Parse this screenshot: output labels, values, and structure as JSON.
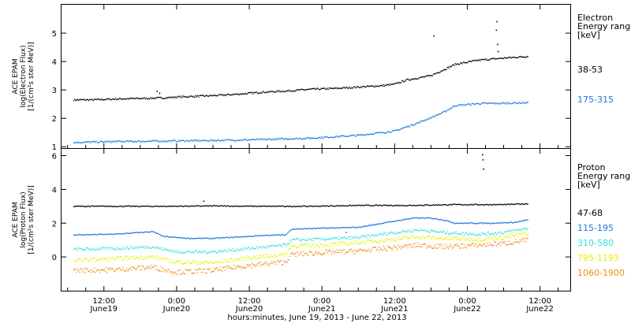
{
  "chart_data": [
    {
      "type": "scatter",
      "ylabel": [
        "ACE EPAM",
        "log(Electron Flux)",
        "[1/(cm²s ster MeV)]"
      ],
      "ylim": [
        0.95,
        6.0
      ],
      "yticks": [
        1,
        2,
        3,
        4,
        5
      ],
      "legend_title": [
        "Electron",
        "Energy range",
        "[keV]"
      ],
      "legend_placement": "right",
      "x_unit": "hours since June 19, 2013 00:00",
      "series": [
        {
          "name": "38-53",
          "color": "#000000",
          "points": [
            [
              7,
              2.65
            ],
            [
              10,
              2.65
            ],
            [
              14,
              2.68
            ],
            [
              18,
              2.7
            ],
            [
              22,
              2.72
            ],
            [
              24,
              2.75
            ],
            [
              28,
              2.78
            ],
            [
              32,
              2.82
            ],
            [
              36,
              2.88
            ],
            [
              38,
              2.92
            ],
            [
              42,
              2.96
            ],
            [
              46,
              3.02
            ],
            [
              50,
              3.05
            ],
            [
              54,
              3.1
            ],
            [
              58,
              3.15
            ],
            [
              60,
              3.2
            ],
            [
              62,
              3.35
            ],
            [
              66,
              3.5
            ],
            [
              68,
              3.7
            ],
            [
              70,
              3.9
            ],
            [
              74,
              4.05
            ],
            [
              78,
              4.12
            ],
            [
              80,
              4.15
            ],
            [
              82,
              4.18
            ]
          ],
          "outliers": [
            [
              20.8,
              2.95
            ],
            [
              21.2,
              2.88
            ],
            [
              66.5,
              4.9
            ],
            [
              76.8,
              5.1
            ],
            [
              76.9,
              5.4
            ],
            [
              77.0,
              4.6
            ],
            [
              77.1,
              4.35
            ]
          ]
        },
        {
          "name": "175-315",
          "color": "#1e78dc",
          "points": [
            [
              7,
              1.15
            ],
            [
              14,
              1.18
            ],
            [
              22,
              1.2
            ],
            [
              30,
              1.22
            ],
            [
              38,
              1.25
            ],
            [
              46,
              1.3
            ],
            [
              54,
              1.4
            ],
            [
              60,
              1.55
            ],
            [
              64,
              1.85
            ],
            [
              68,
              2.2
            ],
            [
              70,
              2.45
            ],
            [
              74,
              2.52
            ],
            [
              78,
              2.53
            ],
            [
              82,
              2.55
            ]
          ],
          "outliers": []
        }
      ]
    },
    {
      "type": "scatter",
      "ylabel": [
        "ACE EPAM",
        "log(Proton Flux)",
        "[1/(cm²s ster MeV)]"
      ],
      "ylim": [
        -2.0,
        6.4
      ],
      "yticks": [
        0,
        2,
        4,
        6
      ],
      "legend_title": [
        "Proton",
        "Energy range",
        "[keV]"
      ],
      "legend_placement": "right",
      "x_unit": "hours since June 19, 2013 00:00",
      "series": [
        {
          "name": "47-68",
          "color": "#000000",
          "points": [
            [
              7,
              3.0
            ],
            [
              14,
              3.0
            ],
            [
              22,
              3.0
            ],
            [
              30,
              3.02
            ],
            [
              38,
              3.0
            ],
            [
              46,
              3.0
            ],
            [
              54,
              3.05
            ],
            [
              62,
              3.05
            ],
            [
              70,
              3.1
            ],
            [
              78,
              3.1
            ],
            [
              82,
              3.15
            ]
          ],
          "outliers": [
            [
              74.5,
              6.05
            ],
            [
              74.6,
              5.75
            ],
            [
              74.7,
              5.2
            ],
            [
              28.5,
              3.3
            ]
          ]
        },
        {
          "name": "115-195",
          "color": "#1e78dc",
          "points": [
            [
              7,
              1.3
            ],
            [
              14,
              1.35
            ],
            [
              20,
              1.5
            ],
            [
              22,
              1.2
            ],
            [
              26,
              1.1
            ],
            [
              30,
              1.1
            ],
            [
              35,
              1.2
            ],
            [
              40,
              1.3
            ],
            [
              42,
              1.3
            ],
            [
              43,
              1.65
            ],
            [
              48,
              1.7
            ],
            [
              54,
              1.75
            ],
            [
              58,
              2.0
            ],
            [
              63,
              2.3
            ],
            [
              66,
              2.3
            ],
            [
              68,
              2.2
            ],
            [
              70,
              2.0
            ],
            [
              76,
              2.0
            ],
            [
              80,
              2.05
            ],
            [
              82,
              2.2
            ]
          ],
          "outliers": [
            [
              52,
              1.45
            ]
          ]
        },
        {
          "name": "310-580",
          "color": "#32e1dc",
          "points": [
            [
              7,
              0.45
            ],
            [
              14,
              0.5
            ],
            [
              20,
              0.6
            ],
            [
              24,
              0.3
            ],
            [
              30,
              0.3
            ],
            [
              36,
              0.5
            ],
            [
              42,
              0.7
            ],
            [
              43,
              1.0
            ],
            [
              48,
              1.05
            ],
            [
              54,
              1.15
            ],
            [
              60,
              1.45
            ],
            [
              64,
              1.6
            ],
            [
              68,
              1.45
            ],
            [
              74,
              1.35
            ],
            [
              78,
              1.45
            ],
            [
              82,
              1.7
            ]
          ],
          "outliers": []
        },
        {
          "name": "795-1193",
          "color": "#e6f000",
          "points": [
            [
              7,
              -0.2
            ],
            [
              14,
              -0.1
            ],
            [
              20,
              0.0
            ],
            [
              24,
              -0.3
            ],
            [
              30,
              -0.35
            ],
            [
              36,
              -0.05
            ],
            [
              42,
              0.15
            ],
            [
              43,
              0.65
            ],
            [
              48,
              0.7
            ],
            [
              54,
              0.85
            ],
            [
              60,
              1.05
            ],
            [
              64,
              1.2
            ],
            [
              68,
              1.1
            ],
            [
              74,
              1.05
            ],
            [
              78,
              1.15
            ],
            [
              82,
              1.4
            ]
          ],
          "outliers": []
        },
        {
          "name": "1060-1900",
          "color": "#f08c14",
          "points": [
            [
              7,
              -0.8
            ],
            [
              14,
              -0.75
            ],
            [
              20,
              -0.6
            ],
            [
              24,
              -0.9
            ],
            [
              30,
              -0.8
            ],
            [
              36,
              -0.5
            ],
            [
              42,
              -0.3
            ],
            [
              43,
              0.15
            ],
            [
              48,
              0.25
            ],
            [
              54,
              0.35
            ],
            [
              60,
              0.55
            ],
            [
              64,
              0.7
            ],
            [
              68,
              0.6
            ],
            [
              74,
              0.7
            ],
            [
              78,
              0.8
            ],
            [
              82,
              1.0
            ]
          ],
          "outliers": []
        }
      ]
    }
  ],
  "x_axis": {
    "xlim": [
      5,
      89
    ],
    "ticks": [
      {
        "hours": 12,
        "time": "12:00",
        "date": "June19"
      },
      {
        "hours": 24,
        "time": "0:00",
        "date": "June20"
      },
      {
        "hours": 36,
        "time": "12:00",
        "date": "June20"
      },
      {
        "hours": 48,
        "time": "0:00",
        "date": "June21"
      },
      {
        "hours": 60,
        "time": "12:00",
        "date": "June21"
      },
      {
        "hours": 72,
        "time": "0:00",
        "date": "June22"
      },
      {
        "hours": 84,
        "time": "12:00",
        "date": "June22"
      }
    ],
    "label": "hours:minutes, June 19, 2013 - June 22, 2013"
  }
}
